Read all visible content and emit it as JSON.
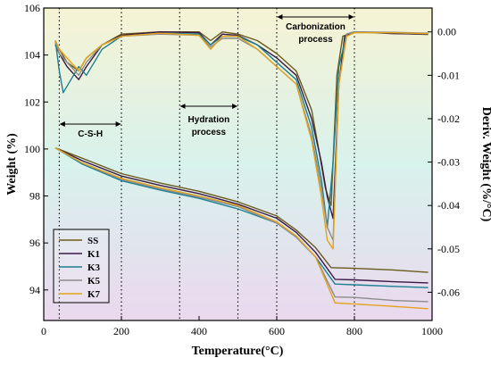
{
  "chart_data": {
    "type": "line",
    "xlabel": "Temperature(°C)",
    "ylabel": "Weight (%)",
    "y2label": "Deriv. Weight (%/°C)",
    "xlim": [
      0,
      1000
    ],
    "ylim": [
      92.7,
      106
    ],
    "y2lim": [
      -0.0665,
      0.0055
    ],
    "xticks": [
      "0",
      "200",
      "400",
      "600",
      "800",
      "1000"
    ],
    "yticks": [
      "94",
      "96",
      "98",
      "100",
      "102",
      "104",
      "106"
    ],
    "y2ticks": [
      "0.00",
      "-0.01",
      "-0.02",
      "-0.03",
      "-0.04",
      "-0.05",
      "-0.06"
    ],
    "grid": false,
    "legend_position": "bottom-left",
    "background_gradient": [
      "#f6f3d4",
      "#d8f2ec",
      "#ead8ee"
    ],
    "dotted_lines_x": [
      40,
      200,
      350,
      500,
      600,
      800
    ],
    "annotations": [
      {
        "text": "C-S-H",
        "x_from": 40,
        "x_to": 200
      },
      {
        "text": "Hydration",
        "x_from": 350,
        "x_to": 500
      },
      {
        "text": "process",
        "x_from": 350,
        "x_to": 500
      },
      {
        "text": "Carbonization",
        "x_from": 600,
        "x_to": 800
      },
      {
        "text": "process",
        "x_from": 600,
        "x_to": 800
      }
    ],
    "series": [
      {
        "name": "SS",
        "color": "#6b5a1a",
        "weight": [
          [
            30,
            100.05
          ],
          [
            100,
            99.6
          ],
          [
            200,
            98.95
          ],
          [
            300,
            98.55
          ],
          [
            400,
            98.2
          ],
          [
            500,
            97.75
          ],
          [
            550,
            97.45
          ],
          [
            600,
            97.15
          ],
          [
            650,
            96.55
          ],
          [
            700,
            95.8
          ],
          [
            740,
            94.95
          ],
          [
            800,
            94.92
          ],
          [
            900,
            94.85
          ],
          [
            990,
            94.75
          ]
        ],
        "deriv": [
          [
            30,
            -0.002
          ],
          [
            40,
            -0.004
          ],
          [
            60,
            -0.007
          ],
          [
            90,
            -0.009
          ],
          [
            110,
            -0.006
          ],
          [
            150,
            -0.003
          ],
          [
            200,
            -0.0005
          ],
          [
            300,
            0.0
          ],
          [
            400,
            0.0
          ],
          [
            430,
            -0.002
          ],
          [
            460,
            0.0
          ],
          [
            500,
            -0.0005
          ],
          [
            550,
            -0.002
          ],
          [
            600,
            -0.005
          ],
          [
            650,
            -0.009
          ],
          [
            690,
            -0.018
          ],
          [
            710,
            -0.028
          ],
          [
            725,
            -0.036
          ],
          [
            740,
            -0.04
          ],
          [
            755,
            -0.01
          ],
          [
            770,
            -0.001
          ],
          [
            800,
            0.0
          ],
          [
            900,
            -0.0003
          ],
          [
            990,
            -0.0006
          ]
        ]
      },
      {
        "name": "K1",
        "color": "#3c1844",
        "weight": [
          [
            30,
            100.05
          ],
          [
            100,
            99.5
          ],
          [
            200,
            98.85
          ],
          [
            300,
            98.45
          ],
          [
            400,
            98.1
          ],
          [
            500,
            97.65
          ],
          [
            550,
            97.35
          ],
          [
            600,
            97.05
          ],
          [
            650,
            96.45
          ],
          [
            700,
            95.6
          ],
          [
            750,
            94.45
          ],
          [
            800,
            94.43
          ],
          [
            900,
            94.35
          ],
          [
            990,
            94.3
          ]
        ],
        "deriv": [
          [
            30,
            -0.003
          ],
          [
            40,
            -0.005
          ],
          [
            60,
            -0.008
          ],
          [
            90,
            -0.011
          ],
          [
            110,
            -0.008
          ],
          [
            150,
            -0.003
          ],
          [
            200,
            -0.0008
          ],
          [
            300,
            0.0
          ],
          [
            400,
            -0.0002
          ],
          [
            430,
            -0.003
          ],
          [
            460,
            -0.0005
          ],
          [
            500,
            -0.0008
          ],
          [
            550,
            -0.003
          ],
          [
            600,
            -0.006
          ],
          [
            650,
            -0.01
          ],
          [
            690,
            -0.02
          ],
          [
            715,
            -0.03
          ],
          [
            730,
            -0.038
          ],
          [
            745,
            -0.043
          ],
          [
            760,
            -0.012
          ],
          [
            775,
            -0.001
          ],
          [
            800,
            0.0
          ],
          [
            900,
            -0.0004
          ],
          [
            990,
            -0.0005
          ]
        ]
      },
      {
        "name": "K3",
        "color": "#1c7f92",
        "weight": [
          [
            30,
            100.05
          ],
          [
            100,
            99.35
          ],
          [
            200,
            98.65
          ],
          [
            300,
            98.25
          ],
          [
            400,
            97.9
          ],
          [
            500,
            97.45
          ],
          [
            550,
            97.15
          ],
          [
            600,
            96.85
          ],
          [
            650,
            96.25
          ],
          [
            700,
            95.4
          ],
          [
            750,
            94.25
          ],
          [
            800,
            94.22
          ],
          [
            900,
            94.15
          ],
          [
            990,
            94.1
          ]
        ],
        "deriv": [
          [
            30,
            -0.002
          ],
          [
            40,
            -0.009
          ],
          [
            50,
            -0.014
          ],
          [
            70,
            -0.011
          ],
          [
            90,
            -0.008
          ],
          [
            110,
            -0.01
          ],
          [
            150,
            -0.004
          ],
          [
            200,
            -0.001
          ],
          [
            300,
            -0.0003
          ],
          [
            400,
            -0.0005
          ],
          [
            430,
            -0.003
          ],
          [
            460,
            -0.001
          ],
          [
            500,
            -0.001
          ],
          [
            550,
            -0.003
          ],
          [
            600,
            -0.007
          ],
          [
            650,
            -0.011
          ],
          [
            690,
            -0.022
          ],
          [
            715,
            -0.034
          ],
          [
            730,
            -0.045
          ],
          [
            745,
            -0.03
          ],
          [
            760,
            -0.008
          ],
          [
            780,
            -0.0005
          ],
          [
            800,
            0.0
          ],
          [
            900,
            -0.0002
          ],
          [
            990,
            -0.0004
          ]
        ]
      },
      {
        "name": "K5",
        "color": "#8b8b8b",
        "weight": [
          [
            30,
            100.05
          ],
          [
            100,
            99.4
          ],
          [
            200,
            98.7
          ],
          [
            300,
            98.3
          ],
          [
            400,
            97.95
          ],
          [
            500,
            97.55
          ],
          [
            550,
            97.2
          ],
          [
            600,
            96.85
          ],
          [
            650,
            96.25
          ],
          [
            700,
            95.4
          ],
          [
            750,
            93.7
          ],
          [
            800,
            93.68
          ],
          [
            900,
            93.55
          ],
          [
            990,
            93.5
          ]
        ],
        "deriv": [
          [
            30,
            -0.002
          ],
          [
            40,
            -0.005
          ],
          [
            60,
            -0.007
          ],
          [
            90,
            -0.01
          ],
          [
            110,
            -0.007
          ],
          [
            150,
            -0.003
          ],
          [
            200,
            -0.001
          ],
          [
            300,
            -0.0005
          ],
          [
            400,
            -0.0008
          ],
          [
            430,
            -0.0035
          ],
          [
            460,
            -0.0015
          ],
          [
            500,
            -0.0015
          ],
          [
            550,
            -0.004
          ],
          [
            600,
            -0.008
          ],
          [
            650,
            -0.012
          ],
          [
            690,
            -0.024
          ],
          [
            715,
            -0.036
          ],
          [
            730,
            -0.045
          ],
          [
            745,
            -0.048
          ],
          [
            760,
            -0.012
          ],
          [
            780,
            -0.0005
          ],
          [
            800,
            0.0
          ],
          [
            900,
            -0.0001
          ],
          [
            990,
            -0.0003
          ]
        ]
      },
      {
        "name": "K7",
        "color": "#e3a21a",
        "weight": [
          [
            30,
            100.05
          ],
          [
            100,
            99.4
          ],
          [
            200,
            98.75
          ],
          [
            300,
            98.35
          ],
          [
            400,
            98.0
          ],
          [
            500,
            97.6
          ],
          [
            550,
            97.25
          ],
          [
            600,
            96.9
          ],
          [
            650,
            96.3
          ],
          [
            700,
            95.4
          ],
          [
            750,
            93.45
          ],
          [
            800,
            93.4
          ],
          [
            900,
            93.3
          ],
          [
            990,
            93.2
          ]
        ],
        "deriv": [
          [
            30,
            -0.002
          ],
          [
            40,
            -0.004
          ],
          [
            60,
            -0.006
          ],
          [
            90,
            -0.009
          ],
          [
            110,
            -0.006
          ],
          [
            150,
            -0.003
          ],
          [
            200,
            -0.001
          ],
          [
            300,
            -0.0003
          ],
          [
            400,
            -0.0008
          ],
          [
            430,
            -0.004
          ],
          [
            460,
            -0.001
          ],
          [
            500,
            -0.001
          ],
          [
            550,
            -0.004
          ],
          [
            600,
            -0.008
          ],
          [
            650,
            -0.012
          ],
          [
            690,
            -0.025
          ],
          [
            715,
            -0.038
          ],
          [
            730,
            -0.048
          ],
          [
            745,
            -0.05
          ],
          [
            760,
            -0.012
          ],
          [
            780,
            -0.001
          ],
          [
            800,
            -0.0002
          ],
          [
            900,
            -0.0002
          ],
          [
            990,
            -0.0004
          ]
        ]
      }
    ]
  }
}
